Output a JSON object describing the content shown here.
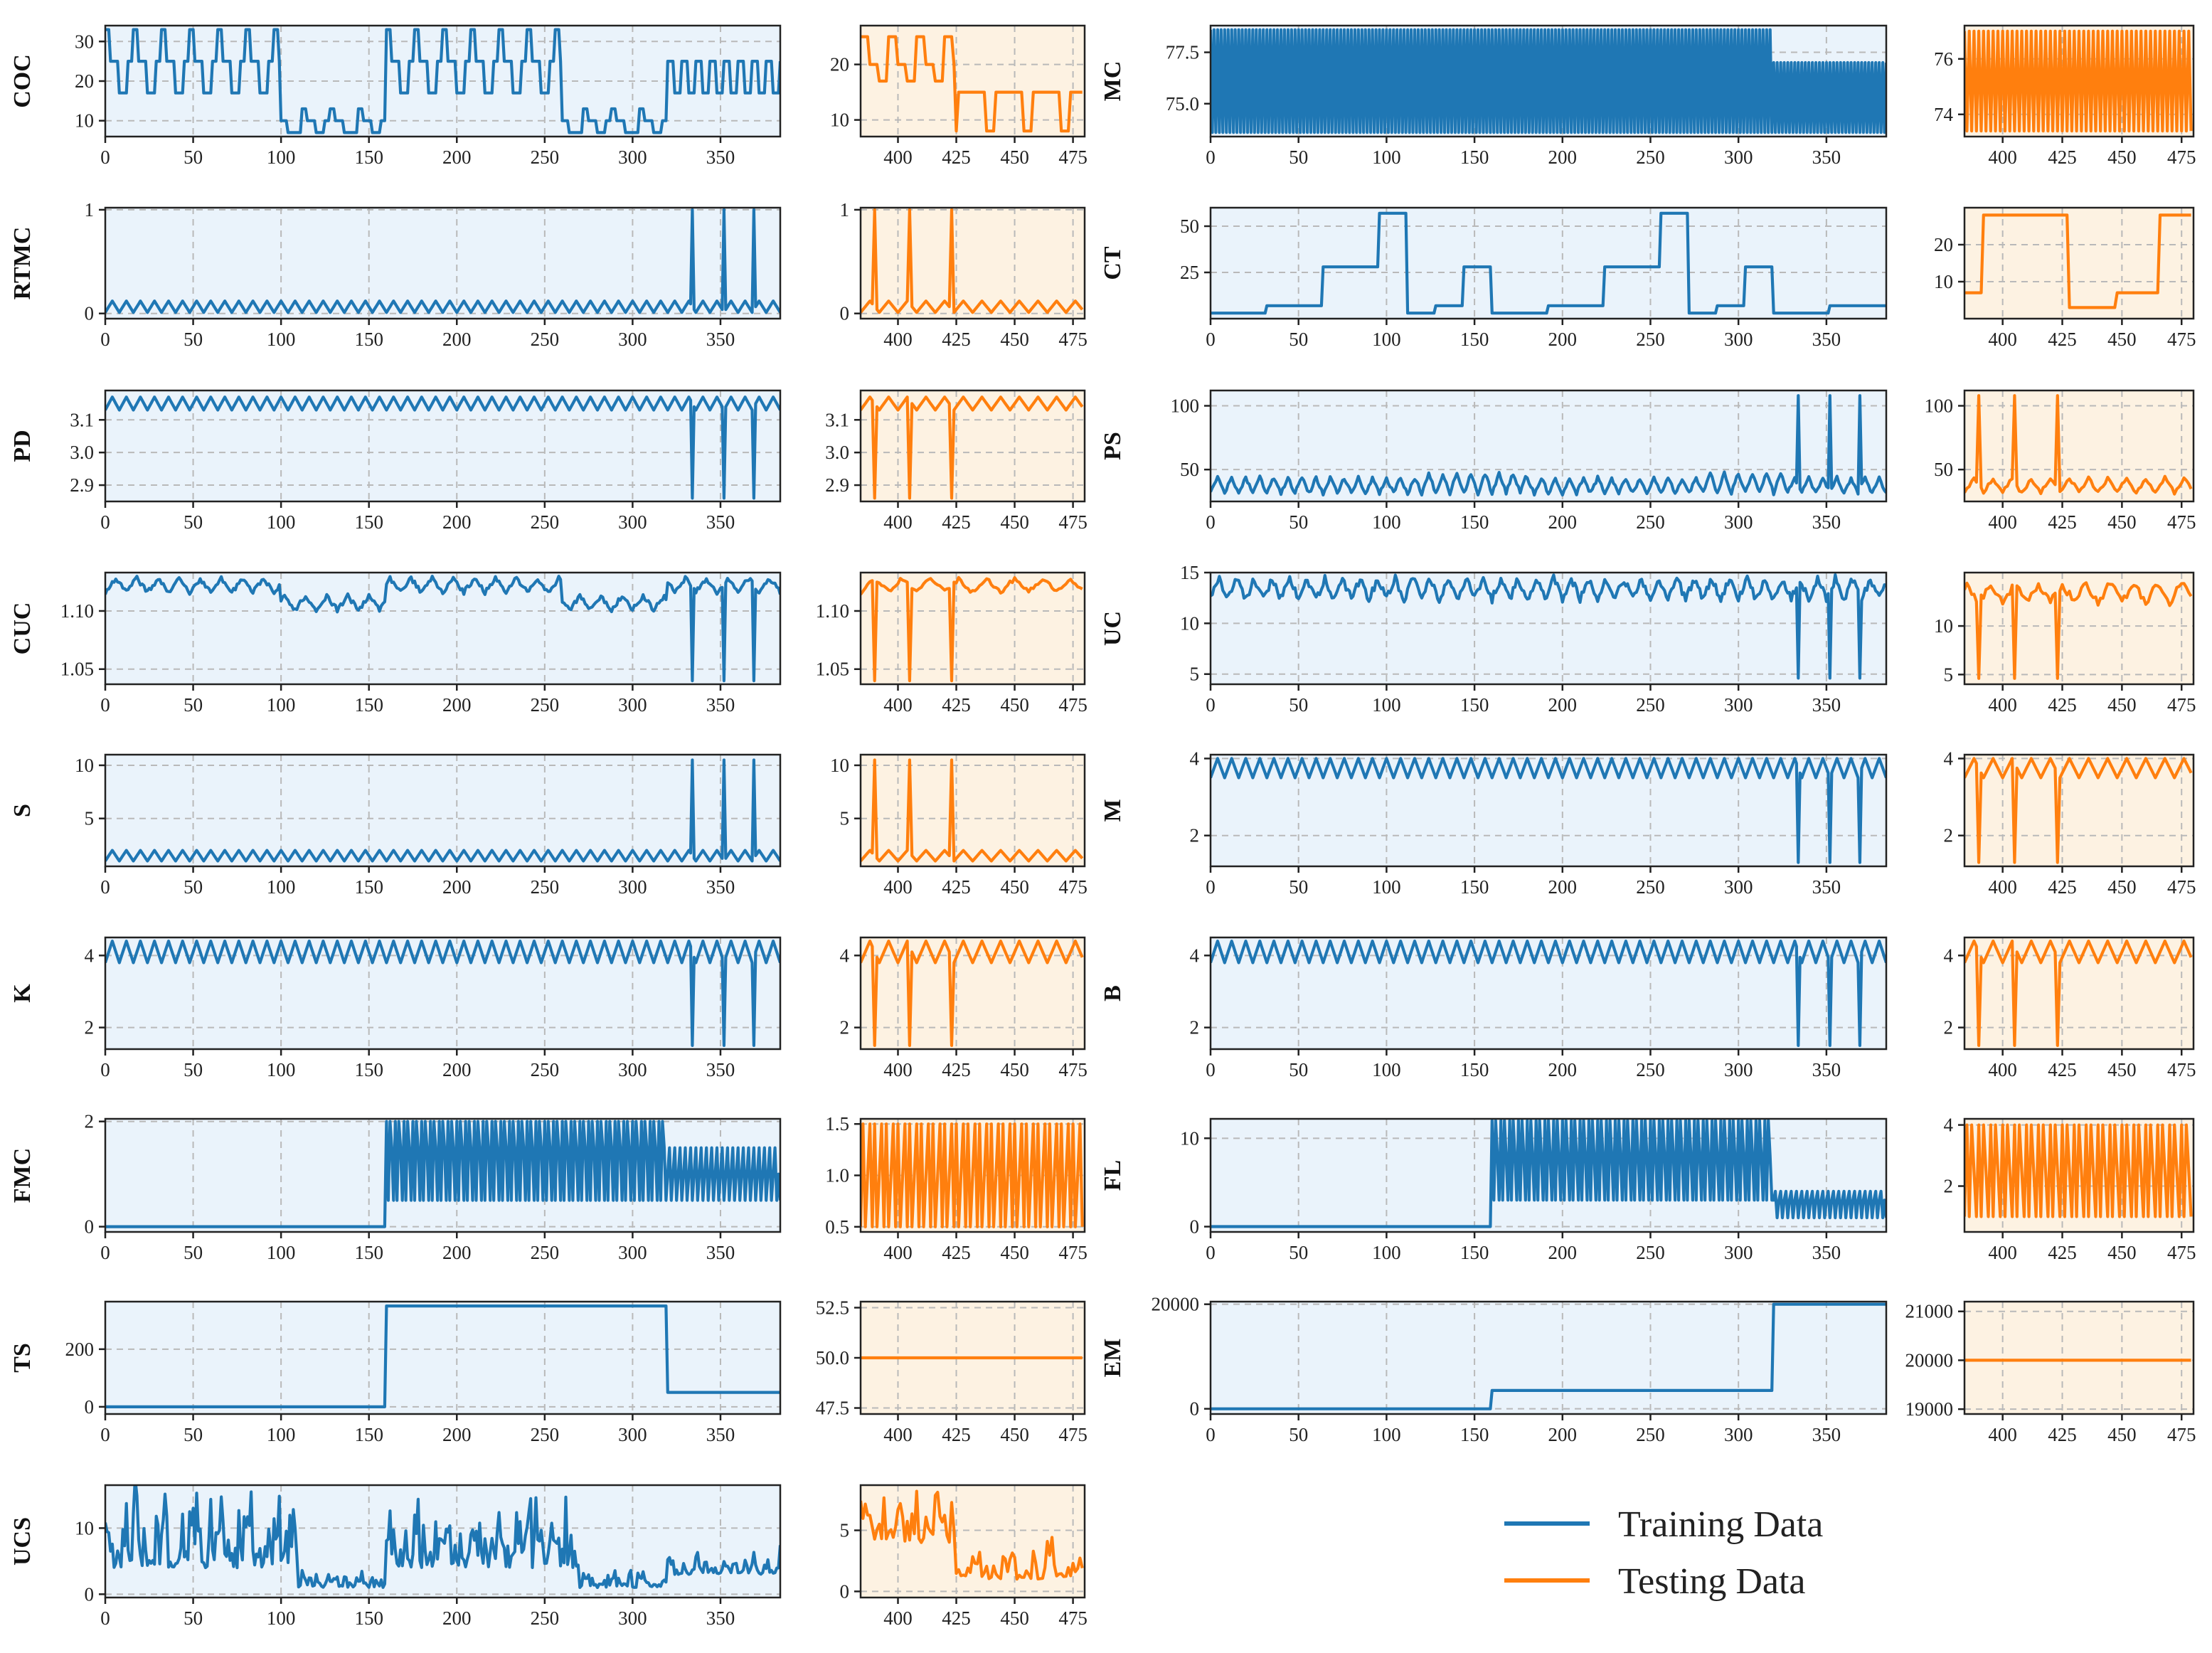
{
  "chart_data": {
    "type": "line",
    "title": "",
    "legend": {
      "placement": "bottom-right",
      "entries": [
        {
          "name": "Training Data",
          "color": "#1f77b4"
        },
        {
          "name": "Testing Data",
          "color": "#ff7f0e"
        }
      ]
    },
    "colors": {
      "train_line": "#1f77b4",
      "test_line": "#ff7f0e",
      "train_bg": "#eaf3fb",
      "test_bg": "#fdf2e2"
    },
    "train_xticks": [
      0,
      50,
      100,
      150,
      200,
      250,
      300,
      350
    ],
    "test_xticks": [
      400,
      425,
      450,
      475
    ],
    "train_xlim": [
      0,
      384
    ],
    "test_xlim": [
      384,
      480
    ],
    "panels": [
      {
        "name": "COC",
        "train_ylim": [
          6,
          34
        ],
        "train_yticks": [
          "10",
          "20",
          "30"
        ],
        "test_ylim": [
          7,
          27
        ],
        "test_yticks": [
          "10",
          "20"
        ]
      },
      {
        "name": "MC",
        "train_ylim": [
          73.4,
          78.8
        ],
        "train_yticks": [
          "75.0",
          "77.5"
        ],
        "test_ylim": [
          73.2,
          77.2
        ],
        "test_yticks": [
          "74",
          "76"
        ]
      },
      {
        "name": "RTMC",
        "train_ylim": [
          -0.05,
          1.02
        ],
        "train_yticks": [
          "0",
          "1"
        ],
        "test_ylim": [
          -0.05,
          1.02
        ],
        "test_yticks": [
          "0",
          "1"
        ]
      },
      {
        "name": "CT",
        "train_ylim": [
          0,
          60
        ],
        "train_yticks": [
          "25",
          "50"
        ],
        "test_ylim": [
          0,
          30
        ],
        "test_yticks": [
          "10",
          "20"
        ]
      },
      {
        "name": "PD",
        "train_ylim": [
          2.85,
          3.19
        ],
        "train_yticks": [
          "2.9",
          "3.0",
          "3.1"
        ],
        "test_ylim": [
          2.85,
          3.19
        ],
        "test_yticks": [
          "2.9",
          "3.0",
          "3.1"
        ]
      },
      {
        "name": "PS",
        "train_ylim": [
          25,
          112
        ],
        "train_yticks": [
          "50",
          "100"
        ],
        "test_ylim": [
          25,
          112
        ],
        "test_yticks": [
          "50",
          "100"
        ]
      },
      {
        "name": "CUC",
        "train_ylim": [
          1.037,
          1.133
        ],
        "train_yticks": [
          "1.05",
          "1.10"
        ],
        "test_ylim": [
          1.037,
          1.133
        ],
        "test_yticks": [
          "1.05",
          "1.10"
        ]
      },
      {
        "name": "UC",
        "train_ylim": [
          4,
          15
        ],
        "train_yticks": [
          "5",
          "10",
          "15"
        ],
        "test_ylim": [
          4,
          15.5
        ],
        "test_yticks": [
          "5",
          "10"
        ]
      },
      {
        "name": "S",
        "train_ylim": [
          0.5,
          11
        ],
        "train_yticks": [
          "5",
          "10"
        ],
        "test_ylim": [
          0.5,
          11
        ],
        "test_yticks": [
          "5",
          "10"
        ]
      },
      {
        "name": "M",
        "train_ylim": [
          1.2,
          4.1
        ],
        "train_yticks": [
          "2",
          "4"
        ],
        "test_ylim": [
          1.2,
          4.1
        ],
        "test_yticks": [
          "2",
          "4"
        ]
      },
      {
        "name": "K",
        "train_ylim": [
          1.4,
          4.5
        ],
        "train_yticks": [
          "2",
          "4"
        ],
        "test_ylim": [
          1.4,
          4.5
        ],
        "test_yticks": [
          "2",
          "4"
        ]
      },
      {
        "name": "B",
        "train_ylim": [
          1.4,
          4.5
        ],
        "train_yticks": [
          "2",
          "4"
        ],
        "test_ylim": [
          1.4,
          4.5
        ],
        "test_yticks": [
          "2",
          "4"
        ]
      },
      {
        "name": "FMC",
        "train_ylim": [
          -0.1,
          2.05
        ],
        "train_yticks": [
          "0",
          "2"
        ],
        "test_ylim": [
          0.45,
          1.55
        ],
        "test_yticks": [
          "0.5",
          "1.0",
          "1.5"
        ]
      },
      {
        "name": "FL",
        "train_ylim": [
          -0.6,
          12.2
        ],
        "train_yticks": [
          "0",
          "10"
        ],
        "test_ylim": [
          0.5,
          4.2
        ],
        "test_yticks": [
          "2",
          "4"
        ]
      },
      {
        "name": "TS",
        "train_ylim": [
          -25,
          365
        ],
        "train_yticks": [
          "0",
          "200"
        ],
        "test_ylim": [
          47.2,
          52.8
        ],
        "test_yticks": [
          "47.5",
          "50.0",
          "52.5"
        ]
      },
      {
        "name": "EM",
        "train_ylim": [
          -1000,
          20500
        ],
        "train_yticks": [
          "0",
          "20000"
        ],
        "test_ylim": [
          18900,
          21200
        ],
        "test_yticks": [
          "19000",
          "20000",
          "21000"
        ]
      },
      {
        "name": "UCS",
        "train_ylim": [
          -0.5,
          16.5
        ],
        "train_yticks": [
          "0",
          "10"
        ],
        "test_ylim": [
          -0.5,
          8.7
        ],
        "test_yticks": [
          "0",
          "5"
        ]
      }
    ]
  }
}
